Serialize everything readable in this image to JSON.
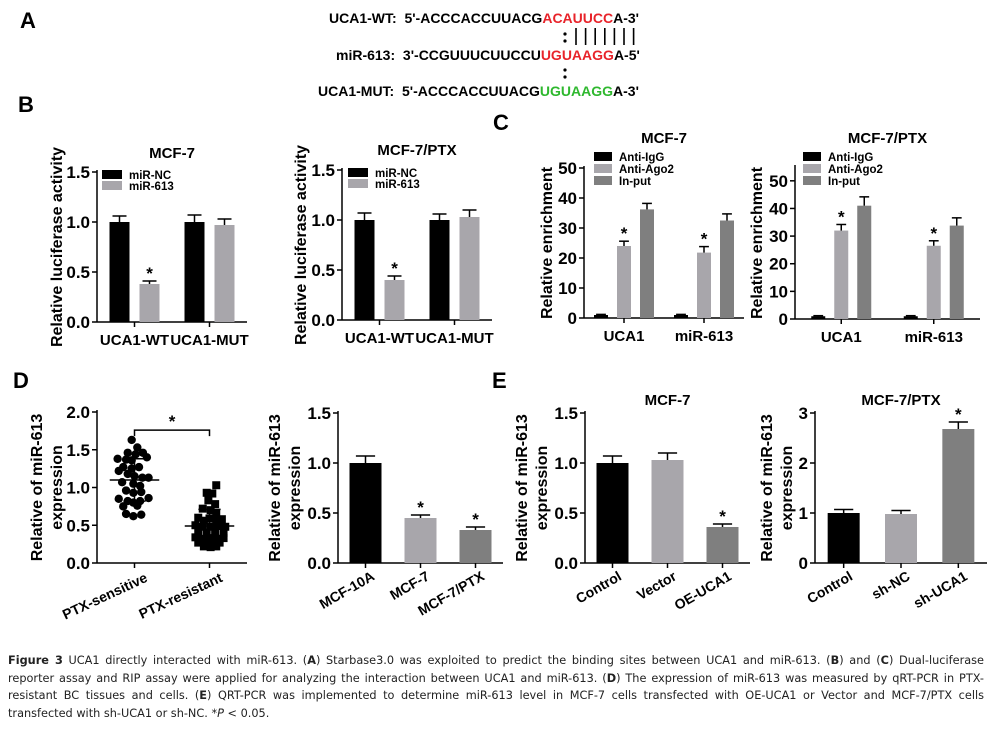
{
  "panel_letters": {
    "A": "A",
    "B": "B",
    "C": "C",
    "D": "D",
    "E": "E"
  },
  "sequences": {
    "wt": {
      "label": "UCA1-WT:",
      "prefix": "5'-ACCCACCUUACG",
      "highlight": "ACAUUCC",
      "suffix": "A-3'",
      "color": "#e8232a"
    },
    "mir": {
      "label": "miR-613:",
      "prefix": "3'-CCGUUUCUUCCU",
      "highlight": "UGUAAGG",
      "suffix": "A-5'",
      "color": "#e8232a"
    },
    "mut": {
      "label": "UCA1-MUT:",
      "prefix": "5'-ACCCACCUUACG",
      "highlight": "UGUAAGG",
      "suffix": "A-3'",
      "color": "#2eb82e"
    }
  },
  "colors": {
    "black": "#000000",
    "light_gray": "#a8a6ab",
    "dark_gray": "#7f7f7f"
  },
  "chart_data": [
    {
      "id": "B1",
      "type": "bar",
      "title": "MCF-7",
      "xlabel": "",
      "ylabel": "Relative luciferase activity",
      "ylim": [
        0,
        1.5
      ],
      "yticks": [
        "0.0",
        "0.5",
        "1.0",
        "1.5"
      ],
      "ytick_values": [
        0,
        0.5,
        1.0,
        1.5
      ],
      "categories": [
        "UCA1-WT",
        "UCA1-MUT"
      ],
      "legend_position": "top-left",
      "series": [
        {
          "name": "miR-NC",
          "color": "#000000",
          "values": [
            1.0,
            1.0
          ],
          "errors": [
            0.06,
            0.07
          ],
          "sig": [
            false,
            false
          ]
        },
        {
          "name": "miR-613",
          "color": "#a8a6ab",
          "values": [
            0.38,
            0.97
          ],
          "errors": [
            0.03,
            0.06
          ],
          "sig": [
            true,
            false
          ]
        }
      ],
      "sig_label": "*"
    },
    {
      "id": "B2",
      "type": "bar",
      "title": "MCF-7/PTX",
      "xlabel": "",
      "ylabel": "Relative luciferase activity",
      "ylim": [
        0,
        1.5
      ],
      "yticks": [
        "0.0",
        "0.5",
        "1.0",
        "1.5"
      ],
      "ytick_values": [
        0,
        0.5,
        1.0,
        1.5
      ],
      "categories": [
        "UCA1-WT",
        "UCA1-MUT"
      ],
      "legend_position": "top-left",
      "series": [
        {
          "name": "miR-NC",
          "color": "#000000",
          "values": [
            1.0,
            1.0
          ],
          "errors": [
            0.07,
            0.06
          ],
          "sig": [
            false,
            false
          ]
        },
        {
          "name": "miR-613",
          "color": "#a8a6ab",
          "values": [
            0.4,
            1.03
          ],
          "errors": [
            0.04,
            0.07
          ],
          "sig": [
            true,
            false
          ]
        }
      ],
      "sig_label": "*"
    },
    {
      "id": "C1",
      "type": "bar",
      "title": "MCF-7",
      "xlabel": "",
      "ylabel": "Relative enrichment",
      "ylim": [
        0,
        50
      ],
      "yticks": [
        "0",
        "10",
        "20",
        "30",
        "40",
        "50"
      ],
      "ytick_values": [
        0,
        10,
        20,
        30,
        40,
        50
      ],
      "categories": [
        "UCA1",
        "miR-613"
      ],
      "legend_position": "top-left",
      "series": [
        {
          "name": "Anti-IgG",
          "color": "#000000",
          "values": [
            1.0,
            1.0
          ],
          "errors": [
            0.2,
            0.2
          ],
          "sig": [
            false,
            false
          ]
        },
        {
          "name": "Anti-Ago2",
          "color": "#a8a6ab",
          "values": [
            24,
            21.8
          ],
          "errors": [
            1.6,
            2.0
          ],
          "sig": [
            true,
            true
          ]
        },
        {
          "name": "In-put",
          "color": "#7f7f7f",
          "values": [
            36.2,
            32.5
          ],
          "errors": [
            2.0,
            2.2
          ],
          "sig": [
            false,
            false
          ]
        }
      ],
      "sig_label": "*"
    },
    {
      "id": "C2",
      "type": "bar",
      "title": "MCF-7/PTX",
      "xlabel": "",
      "ylabel": "Relative enrichment",
      "ylim": [
        0,
        55
      ],
      "yticks": [
        "0",
        "10",
        "20",
        "30",
        "40",
        "50"
      ],
      "ytick_values": [
        0,
        10,
        20,
        30,
        40,
        50
      ],
      "categories": [
        "UCA1",
        "miR-613"
      ],
      "legend_position": "top-left",
      "series": [
        {
          "name": "Anti-IgG",
          "color": "#000000",
          "values": [
            1.0,
            1.0
          ],
          "errors": [
            0.2,
            0.2
          ],
          "sig": [
            false,
            false
          ]
        },
        {
          "name": "Anti-Ago2",
          "color": "#a8a6ab",
          "values": [
            32,
            26.5
          ],
          "errors": [
            2.2,
            1.8
          ],
          "sig": [
            true,
            true
          ]
        },
        {
          "name": "In-put",
          "color": "#7f7f7f",
          "values": [
            41,
            33.8
          ],
          "errors": [
            3.2,
            2.8
          ],
          "sig": [
            false,
            false
          ]
        }
      ],
      "sig_label": "*"
    },
    {
      "id": "D1",
      "type": "scatter",
      "title": "",
      "xlabel": "",
      "ylabel": "Relative of miR-613\nexpression",
      "ylim": [
        0,
        2.0
      ],
      "yticks": [
        "0.0",
        "0.5",
        "1.0",
        "1.5",
        "2.0"
      ],
      "ytick_values": [
        0,
        0.5,
        1.0,
        1.5,
        2.0
      ],
      "categories": [
        "PTX-sensitive",
        "PTX-resistant"
      ],
      "series": [
        {
          "name": "PTX-sensitive",
          "marker": "circle",
          "mean": 1.1,
          "sd": 0.28,
          "points": [
            [
              -0.05,
              1.63
            ],
            [
              0.05,
              1.53
            ],
            [
              -0.12,
              1.46
            ],
            [
              0.02,
              1.44
            ],
            [
              0.15,
              1.46
            ],
            [
              -0.3,
              1.38
            ],
            [
              -0.15,
              1.37
            ],
            [
              -0.05,
              1.36
            ],
            [
              0.22,
              1.4
            ],
            [
              -0.2,
              1.27
            ],
            [
              -0.05,
              1.25
            ],
            [
              0.08,
              1.27
            ],
            [
              -0.28,
              1.22
            ],
            [
              -0.12,
              1.18
            ],
            [
              0.0,
              1.15
            ],
            [
              0.14,
              1.13
            ],
            [
              0.25,
              1.13
            ],
            [
              -0.22,
              1.07
            ],
            [
              -0.02,
              1.05
            ],
            [
              0.1,
              1.02
            ],
            [
              -0.15,
              0.96
            ],
            [
              0.12,
              0.94
            ],
            [
              -0.02,
              0.93
            ],
            [
              -0.28,
              0.85
            ],
            [
              0.25,
              0.86
            ],
            [
              -0.12,
              0.82
            ],
            [
              -0.02,
              0.8
            ],
            [
              0.1,
              0.82
            ],
            [
              -0.2,
              0.75
            ],
            [
              0.05,
              0.76
            ],
            [
              -0.15,
              0.65
            ],
            [
              -0.02,
              0.62
            ],
            [
              0.12,
              0.64
            ]
          ]
        },
        {
          "name": "PTX-resistant",
          "marker": "square",
          "mean": 0.49,
          "sd": 0.22,
          "points": [
            [
              0.12,
              1.03
            ],
            [
              -0.05,
              0.93
            ],
            [
              0.05,
              0.92
            ],
            [
              -0.02,
              0.83
            ],
            [
              0.1,
              0.78
            ],
            [
              -0.12,
              0.72
            ],
            [
              0.02,
              0.7
            ],
            [
              0.12,
              0.66
            ],
            [
              -0.2,
              0.6
            ],
            [
              0.0,
              0.59
            ],
            [
              0.22,
              0.58
            ],
            [
              -0.1,
              0.56
            ],
            [
              0.12,
              0.56
            ],
            [
              -0.25,
              0.5
            ],
            [
              -0.12,
              0.48
            ],
            [
              0.02,
              0.48
            ],
            [
              0.15,
              0.49
            ],
            [
              0.28,
              0.48
            ],
            [
              -0.2,
              0.42
            ],
            [
              -0.05,
              0.4
            ],
            [
              0.1,
              0.4
            ],
            [
              0.25,
              0.4
            ],
            [
              -0.25,
              0.34
            ],
            [
              -0.12,
              0.32
            ],
            [
              0.0,
              0.33
            ],
            [
              0.12,
              0.32
            ],
            [
              0.25,
              0.33
            ],
            [
              -0.2,
              0.27
            ],
            [
              -0.08,
              0.25
            ],
            [
              0.05,
              0.26
            ],
            [
              0.18,
              0.27
            ],
            [
              -0.1,
              0.22
            ],
            [
              0.02,
              0.21
            ],
            [
              0.12,
              0.22
            ]
          ]
        }
      ],
      "comparison": {
        "from": "PTX-sensitive",
        "to": "PTX-resistant",
        "label": "*"
      }
    },
    {
      "id": "D2",
      "type": "bar",
      "title": "",
      "xlabel": "",
      "ylabel": "Relative of miR-613\nexpression",
      "ylim": [
        0,
        1.5
      ],
      "yticks": [
        "0.0",
        "0.5",
        "1.0",
        "1.5"
      ],
      "ytick_values": [
        0,
        0.5,
        1.0,
        1.5
      ],
      "categories": [
        "MCF-10A",
        "MCF-7",
        "MCF-7/PTX"
      ],
      "values": [
        1.0,
        0.45,
        0.33
      ],
      "errors": [
        0.07,
        0.03,
        0.03
      ],
      "colors": [
        "#000000",
        "#a8a6ab",
        "#7f7f7f"
      ],
      "sig": [
        false,
        true,
        true
      ],
      "sig_label": "*"
    },
    {
      "id": "E1",
      "type": "bar",
      "title": "MCF-7",
      "xlabel": "",
      "ylabel": "Relative of miR-613\nexpression",
      "ylim": [
        0,
        1.5
      ],
      "yticks": [
        "0.0",
        "0.5",
        "1.0",
        "1.5"
      ],
      "ytick_values": [
        0,
        0.5,
        1.0,
        1.5
      ],
      "categories": [
        "Control",
        "Vector",
        "OE-UCA1"
      ],
      "values": [
        1.0,
        1.03,
        0.36
      ],
      "errors": [
        0.07,
        0.07,
        0.03
      ],
      "colors": [
        "#000000",
        "#a8a6ab",
        "#7f7f7f"
      ],
      "sig": [
        false,
        false,
        true
      ],
      "sig_label": "*"
    },
    {
      "id": "E2",
      "type": "bar",
      "title": "MCF-7/PTX",
      "xlabel": "",
      "ylabel": "Relative of miR-613\nexpression",
      "ylim": [
        0,
        3
      ],
      "yticks": [
        "0",
        "1",
        "2",
        "3"
      ],
      "ytick_values": [
        0,
        1,
        2,
        3
      ],
      "categories": [
        "Control",
        "sh-NC",
        "sh-UCA1"
      ],
      "values": [
        1.0,
        0.98,
        2.68
      ],
      "errors": [
        0.07,
        0.07,
        0.14
      ],
      "colors": [
        "#000000",
        "#a8a6ab",
        "#7f7f7f"
      ],
      "sig": [
        false,
        false,
        true
      ],
      "sig_label": "*"
    }
  ],
  "caption": {
    "fig_label": "Figure 3",
    "parts": [
      {
        "t": " UCA1 directly interacted with miR-613. ("
      },
      {
        "b": "A"
      },
      {
        "t": ") Starbase3.0 was exploited to predict the binding sites between UCA1 and miR-613. ("
      },
      {
        "b": "B"
      },
      {
        "t": ") and ("
      },
      {
        "b": "C"
      },
      {
        "t": ") Dual-luciferase reporter assay and RIP assay were applied for analyzing the interaction between UCA1 and miR-613. ("
      },
      {
        "b": "D"
      },
      {
        "t": ") The expression of miR-613 was measured by qRT-PCR in PTX-resistant BC tissues and cells. ("
      },
      {
        "b": "E"
      },
      {
        "t": ") QRT-PCR was implemented to determine miR-613 level in MCF-7 cells transfected with OE-UCA1 or Vector and MCF-7/PTX cells transfected with sh-UCA1 or sh-NC. *"
      },
      {
        "i": "P"
      },
      {
        "t": " < 0.05."
      }
    ]
  }
}
